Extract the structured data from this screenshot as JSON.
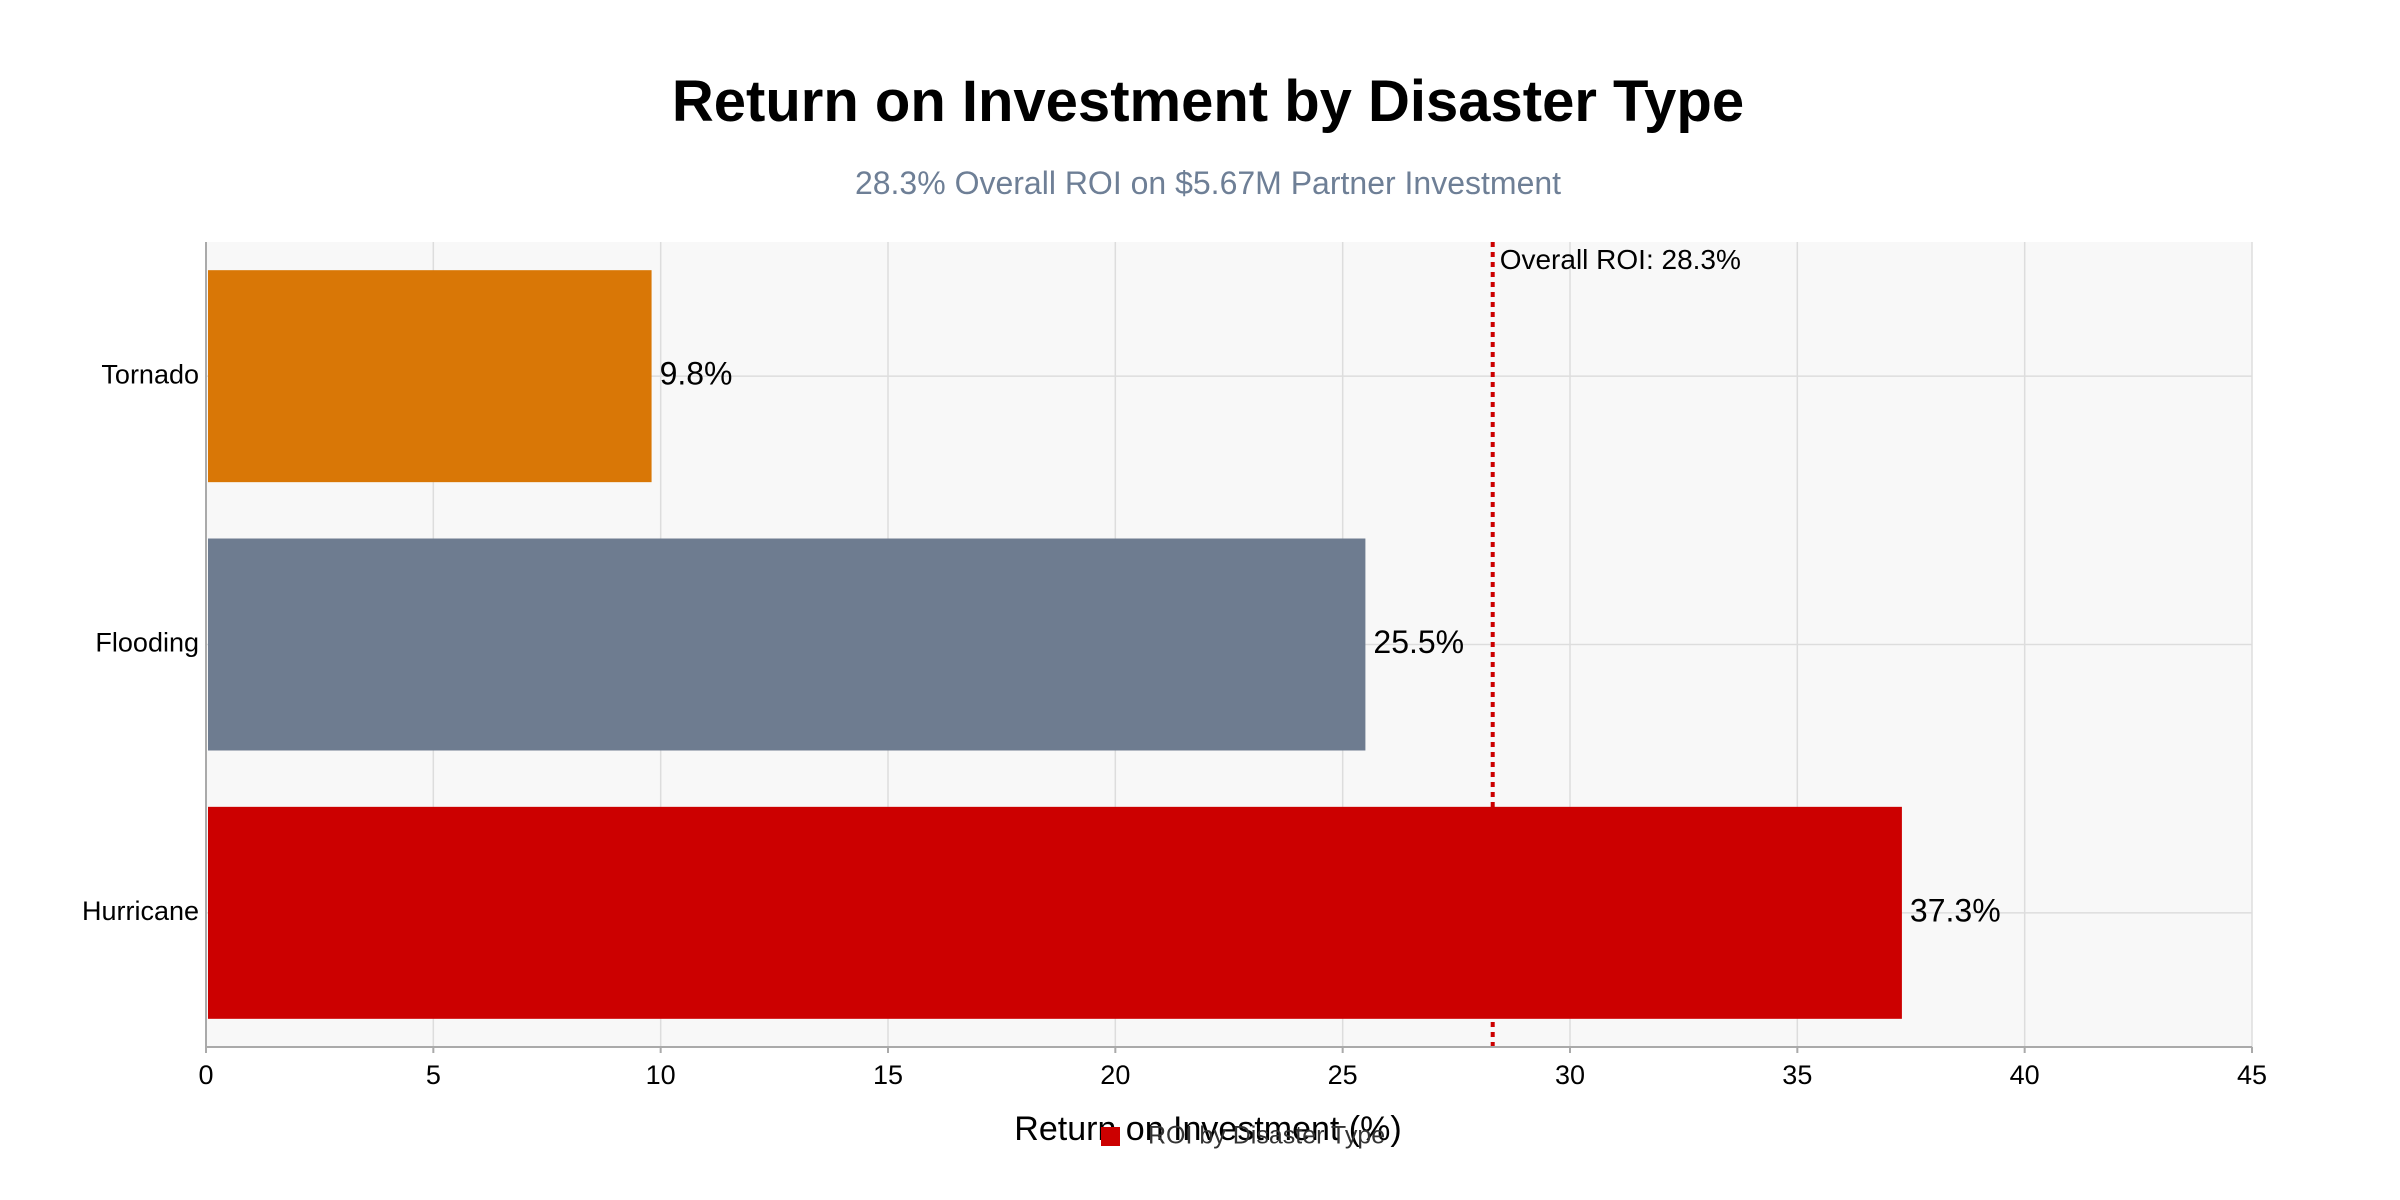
{
  "chart_data": {
    "type": "bar",
    "orientation": "horizontal",
    "title": "Return on Investment by Disaster Type",
    "subtitle": "28.3% Overall ROI on $5.67M Partner Investment",
    "xlabel": "Return on Investment (%)",
    "ylabel": "",
    "categories": [
      "Hurricane",
      "Flooding",
      "Tornado"
    ],
    "series": [
      {
        "name": "ROI by Disaster Type",
        "values": [
          37.3,
          25.5,
          9.8
        ],
        "value_labels": [
          "37.3%",
          "25.5%",
          "9.8%"
        ],
        "colors": [
          "#cc0000",
          "#6e7c90",
          "#d97706"
        ]
      }
    ],
    "xlim": [
      0,
      45
    ],
    "x_ticks": [
      0,
      5,
      10,
      15,
      20,
      25,
      30,
      35,
      40,
      45
    ],
    "reference_line": {
      "value": 28.3,
      "label": "Overall ROI: 28.3%",
      "color": "#cc0000",
      "style": "dotted"
    },
    "grid": true,
    "plot_background": "#f8f8f8",
    "legend": {
      "position": "bottom-center",
      "entries": [
        {
          "label": "ROI by Disaster Type",
          "color": "#cc0000"
        }
      ]
    }
  }
}
